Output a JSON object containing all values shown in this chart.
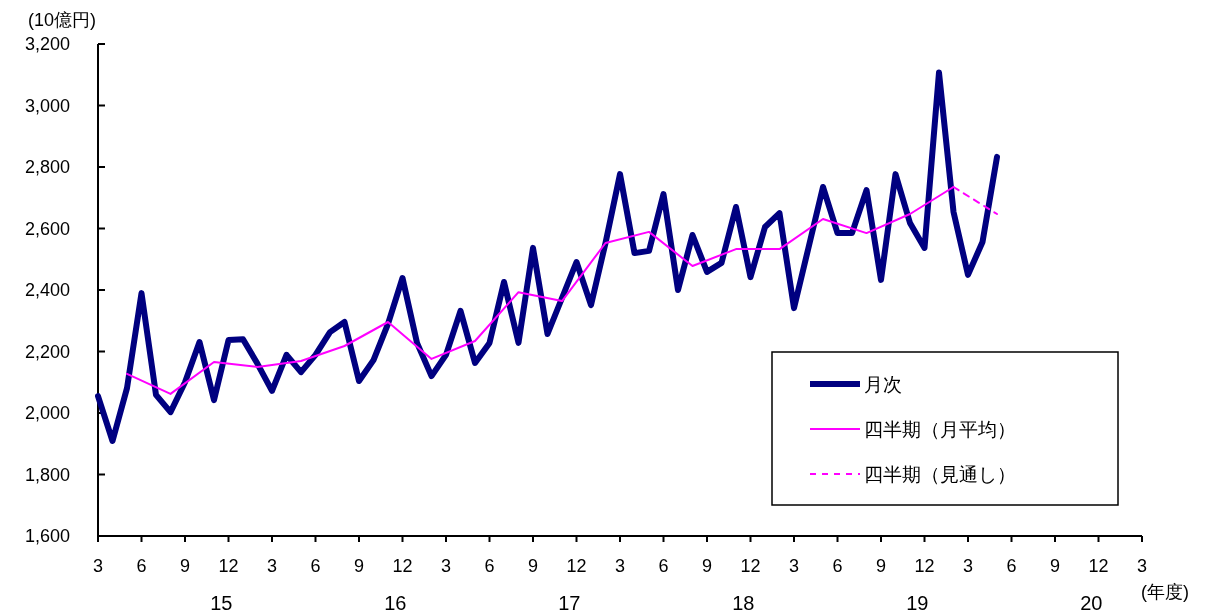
{
  "chart_data": {
    "type": "line",
    "ylabel": "(10億円)",
    "xlabel": "(年度)",
    "categories": [
      "3",
      null,
      null,
      "6",
      null,
      null,
      "9",
      null,
      null,
      "12",
      null,
      null,
      "3",
      null,
      null,
      "6",
      null,
      null,
      "9",
      null,
      null,
      "12",
      null,
      null,
      "3",
      null,
      null,
      "6",
      null,
      null,
      "9",
      null,
      null,
      "12",
      null,
      null,
      "3",
      null,
      null,
      "6",
      null,
      null,
      "9",
      null,
      null,
      "12",
      null,
      null,
      "3",
      null,
      null,
      "6",
      null,
      null,
      "9",
      null,
      null,
      "12",
      null,
      null,
      "3",
      null,
      null,
      "6",
      null,
      null,
      "9",
      null,
      null,
      "12",
      null,
      null,
      "3"
    ],
    "series": [
      {
        "name": "月次",
        "color": "#000080",
        "line_style": "solid",
        "values": [
          2055,
          1909,
          2081,
          2390,
          2059,
          2003,
          2100,
          2231,
          2042,
          2237,
          2240,
          2160,
          2072,
          2189,
          2133,
          2189,
          2263,
          2296,
          2104,
          2172,
          2290,
          2439,
          2228,
          2120,
          2189,
          2332,
          2163,
          2228,
          2426,
          2228,
          2537,
          2257,
          2374,
          2491,
          2351,
          2553,
          2777,
          2520,
          2527,
          2712,
          2400,
          2579,
          2459,
          2488,
          2670,
          2442,
          2605,
          2650,
          2341,
          2538,
          2735,
          2585,
          2585,
          2725,
          2433,
          2777,
          2618,
          2537,
          3107,
          2654,
          2449,
          2556,
          2833,
          null,
          null,
          null,
          null,
          null,
          null,
          null,
          null,
          null,
          null
        ]
      },
      {
        "name": "四半期（月平均）",
        "color": "#ff00ff",
        "line_style": "solid",
        "values": [
          null,
          null,
          2127,
          null,
          null,
          2062,
          null,
          null,
          2166,
          null,
          null,
          2150,
          null,
          null,
          2169,
          null,
          null,
          2218,
          null,
          null,
          2296,
          null,
          null,
          2176,
          null,
          null,
          2234,
          null,
          null,
          2393,
          null,
          null,
          2364,
          null,
          null,
          2553,
          null,
          null,
          2589,
          null,
          null,
          2478,
          null,
          null,
          2533,
          null,
          null,
          2533,
          null,
          null,
          2631,
          null,
          null,
          2585,
          null,
          null,
          2647,
          null,
          null,
          2735,
          null,
          null,
          null,
          null,
          null,
          null,
          null,
          null,
          null,
          null,
          null,
          null,
          null
        ]
      },
      {
        "name": "四半期（見通し）",
        "color": "#ff00ff",
        "line_style": "dashed",
        "values": [
          null,
          null,
          null,
          null,
          null,
          null,
          null,
          null,
          null,
          null,
          null,
          null,
          null,
          null,
          null,
          null,
          null,
          null,
          null,
          null,
          null,
          null,
          null,
          null,
          null,
          null,
          null,
          null,
          null,
          null,
          null,
          null,
          null,
          null,
          null,
          null,
          null,
          null,
          null,
          null,
          null,
          null,
          null,
          null,
          null,
          null,
          null,
          null,
          null,
          null,
          null,
          null,
          null,
          null,
          null,
          null,
          null,
          null,
          null,
          2735,
          null,
          null,
          2647,
          null,
          null,
          null,
          null,
          null,
          null,
          null,
          null,
          null,
          null
        ]
      }
    ],
    "ylim": [
      1600,
      3200
    ],
    "yticks": [
      {
        "value": 1600,
        "label": "1,600"
      },
      {
        "value": 1800,
        "label": "1,800"
      },
      {
        "value": 2000,
        "label": "2,000"
      },
      {
        "value": 2200,
        "label": "2,200"
      },
      {
        "value": 2400,
        "label": "2,400"
      },
      {
        "value": 2600,
        "label": "2,600"
      },
      {
        "value": 2800,
        "label": "2,800"
      },
      {
        "value": 3000,
        "label": "3,000"
      },
      {
        "value": 3200,
        "label": "3,200"
      }
    ],
    "annotations": [
      "15",
      "16",
      "17",
      "18",
      "19",
      "20"
    ],
    "grid": false,
    "legend": "bottom right"
  }
}
